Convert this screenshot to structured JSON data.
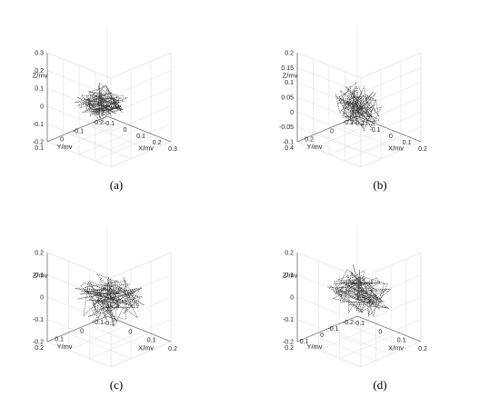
{
  "chart_data": [
    {
      "type": "scatter3d",
      "panel_label": "(a)",
      "xlabel": "X/mv",
      "ylabel": "Y/mv",
      "zlabel": "Z/mv",
      "xlim": [
        -0.1,
        0.3
      ],
      "ylim": [
        -0.2,
        0.2
      ],
      "zlim": [
        -0.2,
        0.3
      ],
      "xticks": [
        "-0.1",
        "0",
        "0.1",
        "0.2",
        "0.3"
      ],
      "yticks": [
        "-0.2",
        "-0.1",
        "0",
        "0.1"
      ],
      "zticks": [
        "-0.2",
        "-0.1",
        "0",
        "0.1",
        "0.2",
        "0.3"
      ],
      "trace": {
        "center": [
          0.05,
          0.0,
          0.0
        ],
        "spread": [
          0.1,
          0.1,
          0.05
        ],
        "points": 140,
        "seed": 11
      },
      "grid": true
    },
    {
      "type": "scatter3d",
      "panel_label": "(b)",
      "xlabel": "X/mv",
      "ylabel": "Y/mv",
      "zlabel": "Z/mv",
      "xlim": [
        -0.2,
        0.2
      ],
      "ylim": [
        -0.2,
        0.4
      ],
      "zlim": [
        -0.1,
        0.2
      ],
      "xticks": [
        "-0.2",
        "-0.1",
        "0",
        "0.1",
        "0.2"
      ],
      "yticks": [
        "-0.2",
        "0",
        "0.2",
        "0.4"
      ],
      "zticks": [
        "-0.1",
        "-0.05",
        "0",
        "0.05",
        "0.1",
        "0.15",
        "0.2"
      ],
      "trace": {
        "center": [
          0.0,
          0.1,
          0.02
        ],
        "spread": [
          0.09,
          0.12,
          0.06
        ],
        "points": 120,
        "seed": 23
      },
      "grid": true
    },
    {
      "type": "scatter3d",
      "panel_label": "(c)",
      "xlabel": "X/mv",
      "ylabel": "Y/mv",
      "zlabel": "Z/mv",
      "xlim": [
        -0.1,
        0.2
      ],
      "ylim": [
        -0.1,
        0.2
      ],
      "zlim": [
        -0.2,
        0.2
      ],
      "xticks": [
        "-0.1",
        "0",
        "0.1",
        "0.2"
      ],
      "yticks": [
        "-0.1",
        "0",
        "0.1",
        "0.2"
      ],
      "zticks": [
        "-0.2",
        "-0.1",
        "0",
        "0.1",
        "0.2"
      ],
      "trace": {
        "center": [
          0.05,
          0.05,
          0.0
        ],
        "spread": [
          0.09,
          0.09,
          0.08
        ],
        "points": 130,
        "seed": 37
      },
      "grid": true
    },
    {
      "type": "scatter3d",
      "panel_label": "(d)",
      "xlabel": "X/mv",
      "ylabel": "Y/mv",
      "zlabel": "Z/mv",
      "xlim": [
        -0.1,
        0.2
      ],
      "ylim": [
        -0.2,
        0.2
      ],
      "zlim": [
        -0.2,
        0.2
      ],
      "xticks": [
        "-0.1",
        "0",
        "0.1",
        "0.2"
      ],
      "yticks": [
        "-0.2",
        "-0.1",
        "0",
        "0.1",
        "0.2"
      ],
      "zticks": [
        "-0.2",
        "-0.1",
        "0",
        "0.1",
        "0.2"
      ],
      "trace": {
        "center": [
          0.05,
          0.0,
          0.02
        ],
        "spread": [
          0.1,
          0.1,
          0.07
        ],
        "points": 120,
        "seed": 51
      },
      "grid": true
    }
  ]
}
